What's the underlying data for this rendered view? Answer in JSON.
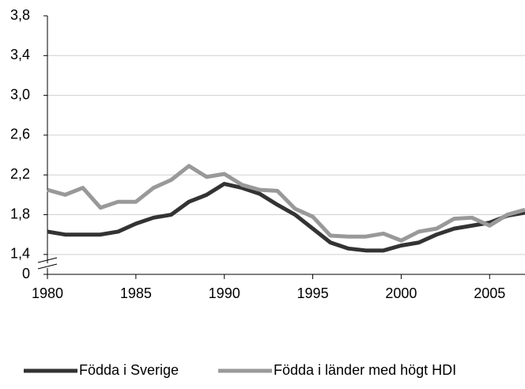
{
  "chart_data": {
    "type": "line",
    "x": [
      1980,
      1981,
      1982,
      1983,
      1984,
      1985,
      1986,
      1987,
      1988,
      1989,
      1990,
      1991,
      1992,
      1993,
      1994,
      1995,
      1996,
      1997,
      1998,
      1999,
      2000,
      2001,
      2002,
      2003,
      2004,
      2005,
      2006,
      2007
    ],
    "series": [
      {
        "name": "Födda i Sverige",
        "color": "#333333",
        "values": [
          1.63,
          1.6,
          1.6,
          1.6,
          1.63,
          1.71,
          1.77,
          1.8,
          1.93,
          2.0,
          2.11,
          2.07,
          2.01,
          1.9,
          1.8,
          1.66,
          1.52,
          1.46,
          1.44,
          1.44,
          1.49,
          1.52,
          1.6,
          1.66,
          1.69,
          1.72,
          1.79,
          1.82
        ]
      },
      {
        "name": "Födda i länder med högt HDI",
        "color": "#999999",
        "values": [
          2.05,
          2.0,
          2.07,
          1.87,
          1.93,
          1.93,
          2.07,
          2.15,
          2.29,
          2.18,
          2.21,
          2.1,
          2.05,
          2.04,
          1.86,
          1.78,
          1.59,
          1.58,
          1.58,
          1.61,
          1.54,
          1.63,
          1.66,
          1.76,
          1.77,
          1.69,
          1.8,
          1.85
        ]
      }
    ],
    "xlim": [
      1980,
      2007
    ],
    "xticks": [
      1980,
      1985,
      1990,
      1995,
      2000,
      2005
    ],
    "ylim": [
      1.2,
      3.8
    ],
    "yticks": [
      0,
      {
        "value": 1.4,
        "label": "1,4"
      },
      {
        "value": 1.8,
        "label": "1,8"
      },
      {
        "value": 2.2,
        "label": "2,2"
      },
      {
        "value": 2.6,
        "label": "2,6"
      },
      {
        "value": 3.0,
        "label": "3,0"
      },
      {
        "value": 3.4,
        "label": "3,4"
      },
      {
        "value": 3.8,
        "label": "3,8"
      }
    ],
    "grid": true,
    "legend": "bottom"
  }
}
